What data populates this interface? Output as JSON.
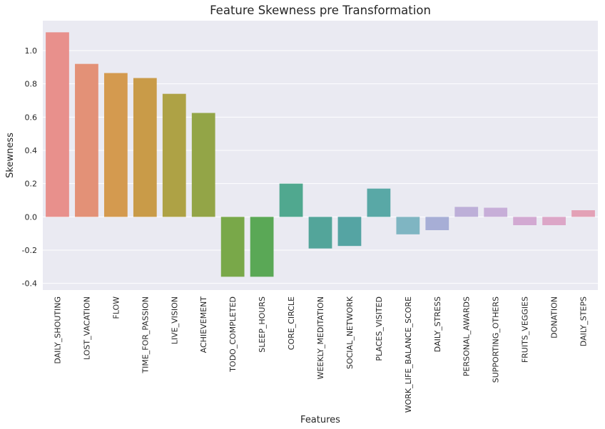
{
  "chart_data": {
    "type": "bar",
    "title": "Feature Skewness pre Transformation",
    "xlabel": "Features",
    "ylabel": "Skewness",
    "ylim": [
      -0.44,
      1.18
    ],
    "yticks": [
      -0.4,
      -0.2,
      0.0,
      0.2,
      0.4,
      0.6,
      0.8,
      1.0
    ],
    "grid": true,
    "categories": [
      "DAILY_SHOUTING",
      "LOST_VACATION",
      "FLOW",
      "TIME_FOR_PASSION",
      "LIVE_VISION",
      "ACHIEVEMENT",
      "TODO_COMPLETED",
      "SLEEP_HOURS",
      "CORE_CIRCLE",
      "WEEKLY_MEDITATION",
      "SOCIAL_NETWORK",
      "PLACES_VISITED",
      "WORK_LIFE_BALANCE_SCORE",
      "DAILY_STRESS",
      "PERSONAL_AWARDS",
      "SUPPORTING_OTHERS",
      "FRUITS_VEGGIES",
      "DONATION",
      "DAILY_STEPS"
    ],
    "values": [
      1.11,
      0.92,
      0.865,
      0.835,
      0.74,
      0.625,
      -0.36,
      -0.36,
      0.2,
      -0.19,
      -0.175,
      0.17,
      -0.105,
      -0.08,
      0.06,
      0.055,
      -0.05,
      -0.05,
      0.04
    ],
    "colors": [
      "#e8908c",
      "#e39177",
      "#d49a4f",
      "#c99b48",
      "#aea245",
      "#93a547",
      "#79a849",
      "#5aa856",
      "#50a88f",
      "#53a59a",
      "#55a4a3",
      "#59a8a6",
      "#7fb5c2",
      "#a7aed6",
      "#bdafd8",
      "#c7aed8",
      "#d2a9d2",
      "#dca6c7",
      "#e3a1b6"
    ]
  }
}
